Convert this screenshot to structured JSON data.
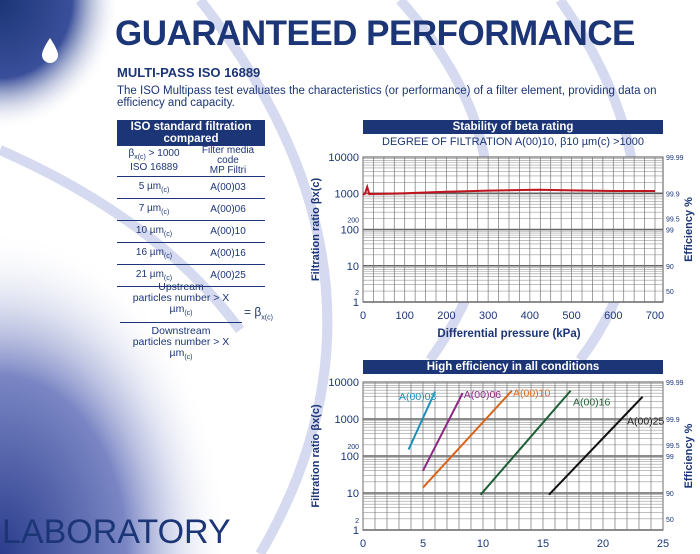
{
  "title": "GUARANTEED PERFORMANCE",
  "subtitle": "MULTI-PASS ISO 16889",
  "intro": "The ISO Multipass test evaluates the characteristics (or performance) of a filter element, providing data on efficiency and capacity.",
  "footer": "LABORATORY",
  "table": {
    "title": "ISO standard filtration compared",
    "col1_head_a": "β",
    "col1_head_sub": "x(c)",
    "col1_head_b": "> 1000",
    "col1_head_c": "ISO 16889",
    "col2_head_a": "Filter media code",
    "col2_head_b": "MP Filtri",
    "unit_sub": "(c)",
    "rows": [
      {
        "size": "5 µm",
        "code": "A(00)03"
      },
      {
        "size": "7 µm",
        "code": "A(00)06"
      },
      {
        "size": "10 µm",
        "code": "A(00)10"
      },
      {
        "size": "16 µm",
        "code": "A(00)16"
      },
      {
        "size": "21 µm",
        "code": "A(00)25"
      }
    ]
  },
  "formula": {
    "num_a": "Upstream",
    "num_b": "particles number > X µm",
    "den_a": "Downstream",
    "den_b": "particles number > X µm",
    "sub": "(c)",
    "rhs": "= β",
    "rhs_sub": "x(c)"
  },
  "chart_data": [
    {
      "type": "line",
      "title": "Stability of beta rating",
      "subtitle": "DEGREE OF FILTRATION A(00)10, β10 µm(c) >1000",
      "xlabel": "Differential pressure (kPa)",
      "ylabel": "Filtration ratio βx(c)",
      "y2label": "Efficiency %",
      "xlim": [
        0,
        700
      ],
      "ylim": [
        1,
        10000
      ],
      "yscale": "log",
      "xticks": [
        "0",
        "100",
        "200",
        "300",
        "400",
        "500",
        "600",
        "700"
      ],
      "yticks": [
        {
          "v": 10000,
          "l": "10000"
        },
        {
          "v": 1000,
          "l": "1000"
        },
        {
          "v": 200,
          "l": "200",
          "small": true
        },
        {
          "v": 100,
          "l": "100"
        },
        {
          "v": 10,
          "l": "10"
        },
        {
          "v": 2,
          "l": "2",
          "small": true
        },
        {
          "v": 1,
          "l": "1"
        }
      ],
      "y2ticks": [
        {
          "v": 10000,
          "l": "99.99"
        },
        {
          "v": 1000,
          "l": "99.9"
        },
        {
          "v": 200,
          "l": "99.5"
        },
        {
          "v": 100,
          "l": "99"
        },
        {
          "v": 10,
          "l": "90"
        },
        {
          "v": 2,
          "l": "50"
        }
      ],
      "xgrid": 25,
      "series": [
        {
          "name": "A(00)10",
          "color": "#c0141e",
          "x": [
            0,
            5,
            10,
            15,
            30,
            100,
            200,
            300,
            420,
            500,
            600,
            700
          ],
          "y": [
            900,
            1000,
            1500,
            950,
            960,
            1000,
            1100,
            1180,
            1250,
            1200,
            1150,
            1150
          ]
        }
      ]
    },
    {
      "type": "line",
      "title": "High efficiency in all conditions",
      "xlabel": "",
      "ylabel": "Filtration ratio βx(c)",
      "y2label": "Efficiency %",
      "xlim": [
        0,
        25
      ],
      "ylim": [
        1,
        10000
      ],
      "yscale": "log",
      "xticks": [
        "0",
        "5",
        "10",
        "15",
        "20",
        "25"
      ],
      "yticks": [
        {
          "v": 10000,
          "l": "10000"
        },
        {
          "v": 1000,
          "l": "1000"
        },
        {
          "v": 200,
          "l": "200",
          "small": true
        },
        {
          "v": 100,
          "l": "100"
        },
        {
          "v": 10,
          "l": "10"
        },
        {
          "v": 2,
          "l": "2",
          "small": true
        },
        {
          "v": 1,
          "l": "1"
        }
      ],
      "y2ticks": [
        {
          "v": 10000,
          "l": "99.99"
        },
        {
          "v": 1000,
          "l": "99.9"
        },
        {
          "v": 200,
          "l": "99.5"
        },
        {
          "v": 100,
          "l": "99"
        },
        {
          "v": 10,
          "l": "90"
        },
        {
          "v": 2,
          "l": "50"
        }
      ],
      "xgrid": 1,
      "series": [
        {
          "name": "A(00)03",
          "color": "#1a8fb8",
          "x": [
            3.8,
            6.0
          ],
          "y": [
            150,
            5500
          ],
          "lx": 3.0,
          "ly": 4200
        },
        {
          "name": "A(00)06",
          "color": "#8a2a84",
          "x": [
            5.0,
            8.3
          ],
          "y": [
            40,
            5000
          ],
          "lx": 8.4,
          "ly": 4800
        },
        {
          "name": "A(00)10",
          "color": "#d86418",
          "x": [
            5.0,
            12.4
          ],
          "y": [
            14,
            5800
          ],
          "lx": 12.5,
          "ly": 5200
        },
        {
          "name": "A(00)16",
          "color": "#1e5e34",
          "x": [
            9.8,
            17.3
          ],
          "y": [
            9,
            5800
          ],
          "lx": 17.5,
          "ly": 3000
        },
        {
          "name": "A(00)25",
          "color": "#111111",
          "x": [
            15.5,
            23.3
          ],
          "y": [
            9,
            4000
          ],
          "lx": 22.0,
          "ly": 900
        }
      ]
    }
  ]
}
